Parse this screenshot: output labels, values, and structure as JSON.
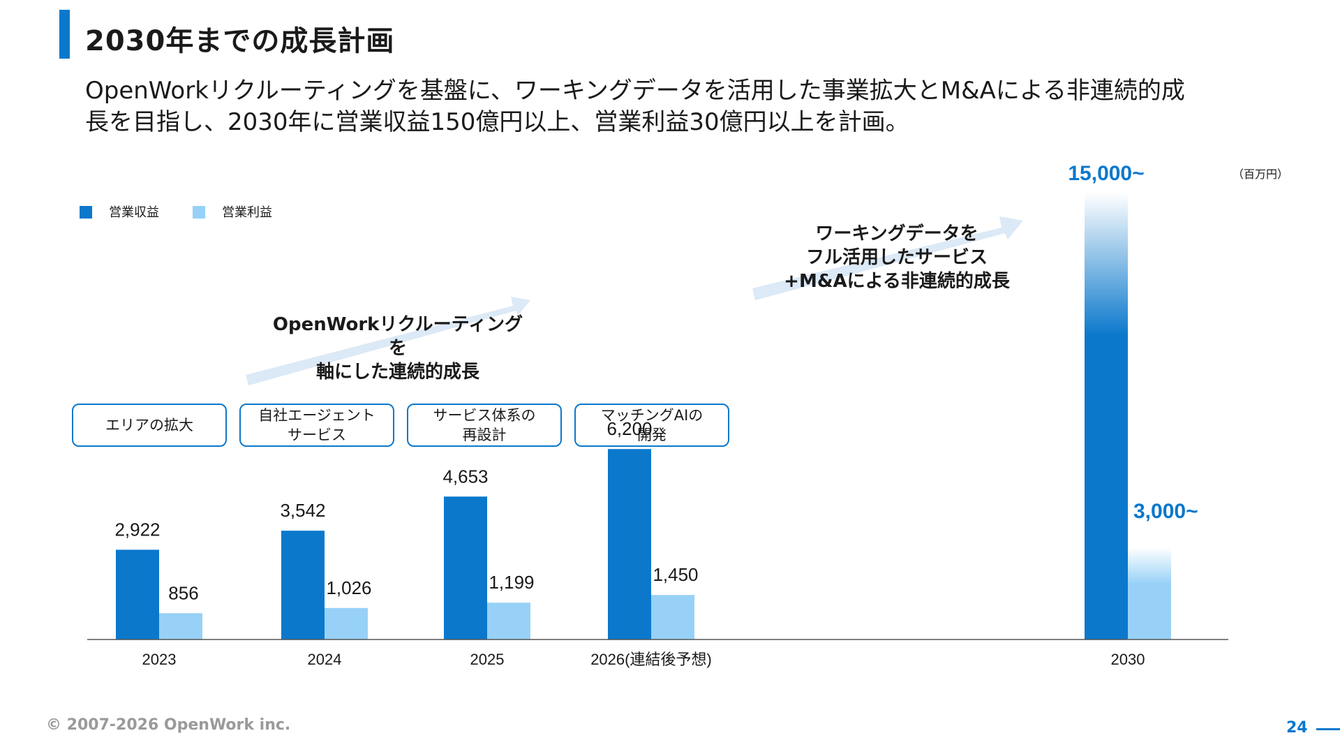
{
  "page": {
    "title": "2030年までの成長計画",
    "subtitle_line1": "OpenWorkリクルーティングを基盤に、ワーキングデータを活用した事業拡大とM&Aによる非連続的成",
    "subtitle_line2": "長を目指し、2030年に営業収益150億円以上、営業利益30億円以上を計画。",
    "unit": "（百万円）",
    "footer": "© 2007-2026 OpenWork inc.",
    "page_number": "24"
  },
  "annotations": {
    "arrow1_line1": "OpenWorkリクルーティングを",
    "arrow1_line2": "軸にした連続的成長",
    "arrow2_line1": "ワーキングデータを",
    "arrow2_line2": "フル活用したサービス",
    "arrow2_line3": "+M&Aによる非連続的成長"
  },
  "milestones": [
    "エリアの拡大",
    "自社エージェント\nサービス",
    "サービス体系の\n再設計",
    "マッチングAIの\n開発"
  ],
  "colors": {
    "accent": "#0b78cc",
    "revenue": "#0b78cc",
    "profit": "#97d1f7",
    "arrow": "#dce9f6"
  },
  "chart_data": {
    "type": "bar",
    "categories": [
      "2023",
      "2024",
      "2025",
      "2026(連結後予想)",
      "2030"
    ],
    "series": [
      {
        "name": "営業収益",
        "values": [
          2922,
          3542,
          4653,
          6200,
          15000
        ],
        "labels": [
          "2,922",
          "3,542",
          "4,653",
          "6,200",
          "15,000~"
        ]
      },
      {
        "name": "営業利益",
        "values": [
          856,
          1026,
          1199,
          1450,
          3000
        ],
        "labels": [
          "856",
          "1,026",
          "1,199",
          "1,450",
          "3,000~"
        ]
      }
    ],
    "ylim": [
      0,
      15000
    ],
    "grid": false,
    "legend": "top-left"
  }
}
